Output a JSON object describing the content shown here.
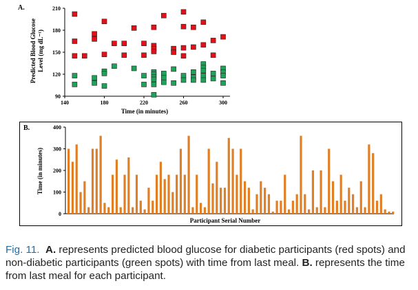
{
  "caption": {
    "fig_label": "Fig. 11.",
    "part_a_label": "A.",
    "part_a_text": " represents predicted blood glucose for diabetic participants (red spots) and non-diabetic participants (green spots) with time from last meal. ",
    "part_b_label": "B.",
    "part_b_text": " represents the time from last meal for each participant."
  },
  "colors": {
    "red": "#e3101a",
    "green": "#1ea25a",
    "bar": "#e07f26"
  },
  "chart_data": [
    {
      "panel_label": "A.",
      "type": "scatter",
      "xlabel": "Time (in minutes)",
      "ylabel_line1": "Predicted Blood Glucose",
      "ylabel_line2": "Level (mg dL⁻¹)",
      "xlim": [
        140,
        305
      ],
      "ylim": [
        90,
        210
      ],
      "xticks": [
        140,
        180,
        220,
        260,
        300
      ],
      "yticks": [
        90,
        120,
        150,
        180,
        210
      ],
      "series": [
        {
          "name": "diabetic",
          "color": "red",
          "points": [
            [
              150,
              202
            ],
            [
              150,
              165
            ],
            [
              150,
              145
            ],
            [
              160,
              145
            ],
            [
              170,
              175
            ],
            [
              170,
              168
            ],
            [
              180,
              192
            ],
            [
              180,
              147
            ],
            [
              190,
              162
            ],
            [
              200,
              162
            ],
            [
              200,
              146
            ],
            [
              210,
              183
            ],
            [
              220,
              162
            ],
            [
              220,
              146
            ],
            [
              230,
              184
            ],
            [
              230,
              159
            ],
            [
              230,
              155
            ],
            [
              230,
              151
            ],
            [
              240,
              200
            ],
            [
              250,
              155
            ],
            [
              250,
              150
            ],
            [
              260,
              205
            ],
            [
              260,
              185
            ],
            [
              260,
              156
            ],
            [
              260,
              145
            ],
            [
              270,
              184
            ],
            [
              270,
              157
            ],
            [
              280,
              191
            ],
            [
              280,
              160
            ],
            [
              290,
              166
            ],
            [
              290,
              146
            ],
            [
              300,
              171
            ]
          ]
        },
        {
          "name": "non-diabetic",
          "color": "green",
          "points": [
            [
              150,
              118
            ],
            [
              150,
              106
            ],
            [
              170,
              115
            ],
            [
              170,
              108
            ],
            [
              180,
              124
            ],
            [
              180,
              121
            ],
            [
              180,
              104
            ],
            [
              190,
              131
            ],
            [
              210,
              128
            ],
            [
              220,
              118
            ],
            [
              220,
              106
            ],
            [
              230,
              123
            ],
            [
              230,
              120
            ],
            [
              230,
              116
            ],
            [
              230,
              113
            ],
            [
              230,
              106
            ],
            [
              230,
              92
            ],
            [
              240,
              121
            ],
            [
              240,
              115
            ],
            [
              240,
              109
            ],
            [
              250,
              127
            ],
            [
              250,
              108
            ],
            [
              260,
              118
            ],
            [
              260,
              112
            ],
            [
              270,
              123
            ],
            [
              270,
              116
            ],
            [
              270,
              112
            ],
            [
              280,
              134
            ],
            [
              280,
              129
            ],
            [
              280,
              125
            ],
            [
              280,
              118
            ],
            [
              280,
              112
            ],
            [
              290,
              121
            ],
            [
              290,
              114
            ],
            [
              300,
              128
            ],
            [
              300,
              123
            ],
            [
              300,
              118
            ],
            [
              300,
              108
            ]
          ]
        }
      ]
    },
    {
      "panel_label": "B.",
      "type": "bar",
      "xlabel": "Participant Serial Number",
      "ylabel": "Time (in minutes)",
      "ylim": [
        0,
        400
      ],
      "yticks": [
        0,
        100,
        200,
        300,
        400
      ],
      "values": [
        300,
        240,
        320,
        100,
        150,
        30,
        300,
        300,
        360,
        50,
        30,
        180,
        250,
        30,
        180,
        260,
        30,
        180,
        60,
        20,
        120,
        60,
        180,
        240,
        160,
        180,
        100,
        180,
        300,
        180,
        360,
        30,
        180,
        50,
        30,
        300,
        140,
        240,
        120,
        120,
        350,
        300,
        180,
        300,
        150,
        120,
        20,
        90,
        150,
        120,
        90,
        10,
        60,
        60,
        180,
        20,
        60,
        90,
        360,
        90,
        20,
        200,
        30,
        200,
        30,
        300,
        150,
        60,
        180,
        60,
        120,
        90,
        30,
        150,
        30,
        320,
        280,
        60,
        90,
        20,
        10,
        10
      ]
    }
  ]
}
